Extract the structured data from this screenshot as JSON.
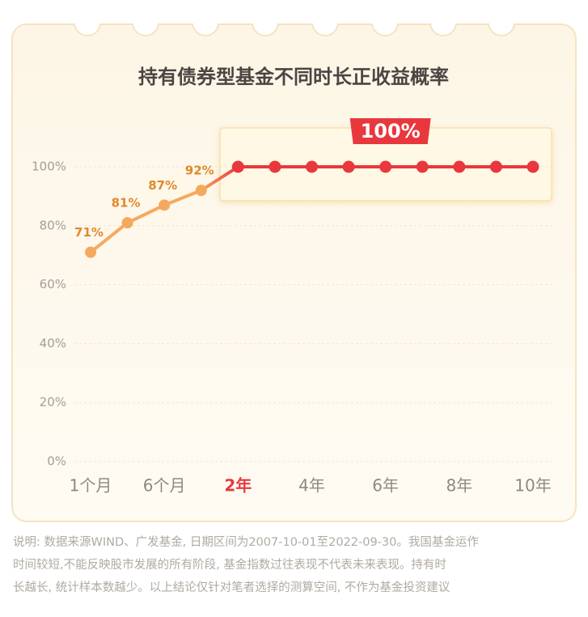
{
  "chart_data": {
    "type": "line",
    "title": "持有债券型基金不同时长正收益概率",
    "categories": [
      "1个月",
      null,
      "6个月",
      null,
      "2年",
      null,
      "4年",
      null,
      "6年",
      null,
      "8年",
      null,
      "10年"
    ],
    "values": [
      71,
      81,
      87,
      92,
      100,
      100,
      100,
      100,
      100,
      100,
      100,
      100,
      100
    ],
    "value_labels": [
      "71%",
      "81%",
      "87%",
      "92%",
      null,
      null,
      null,
      null,
      null,
      null,
      null,
      null,
      null
    ],
    "color": "#f5a95e",
    "highlight_color": "#e8383d",
    "highlight_from": 4,
    "annotation": "100%",
    "ylim": [
      0,
      100
    ],
    "yticks": [
      {
        "value": 0,
        "label": "0%"
      },
      {
        "value": 20,
        "label": "20%"
      },
      {
        "value": 40,
        "label": "40%"
      },
      {
        "value": 60,
        "label": "60%"
      },
      {
        "value": 80,
        "label": "80%"
      },
      {
        "value": 100,
        "label": "100%"
      }
    ],
    "grid": true
  },
  "footnote": [
    "说明: 数据来源WIND、广发基金, 日期区间为2007-10-01至2022-09-30。我国基金运作",
    "时间较短,不能反映股市发展的所有阶段, 基金指数过往表现不代表未来表现。持有时",
    "长越长, 统计样本数越少。以上结论仅针对笔者选择的测算空间, 不作为基金投资建议"
  ]
}
